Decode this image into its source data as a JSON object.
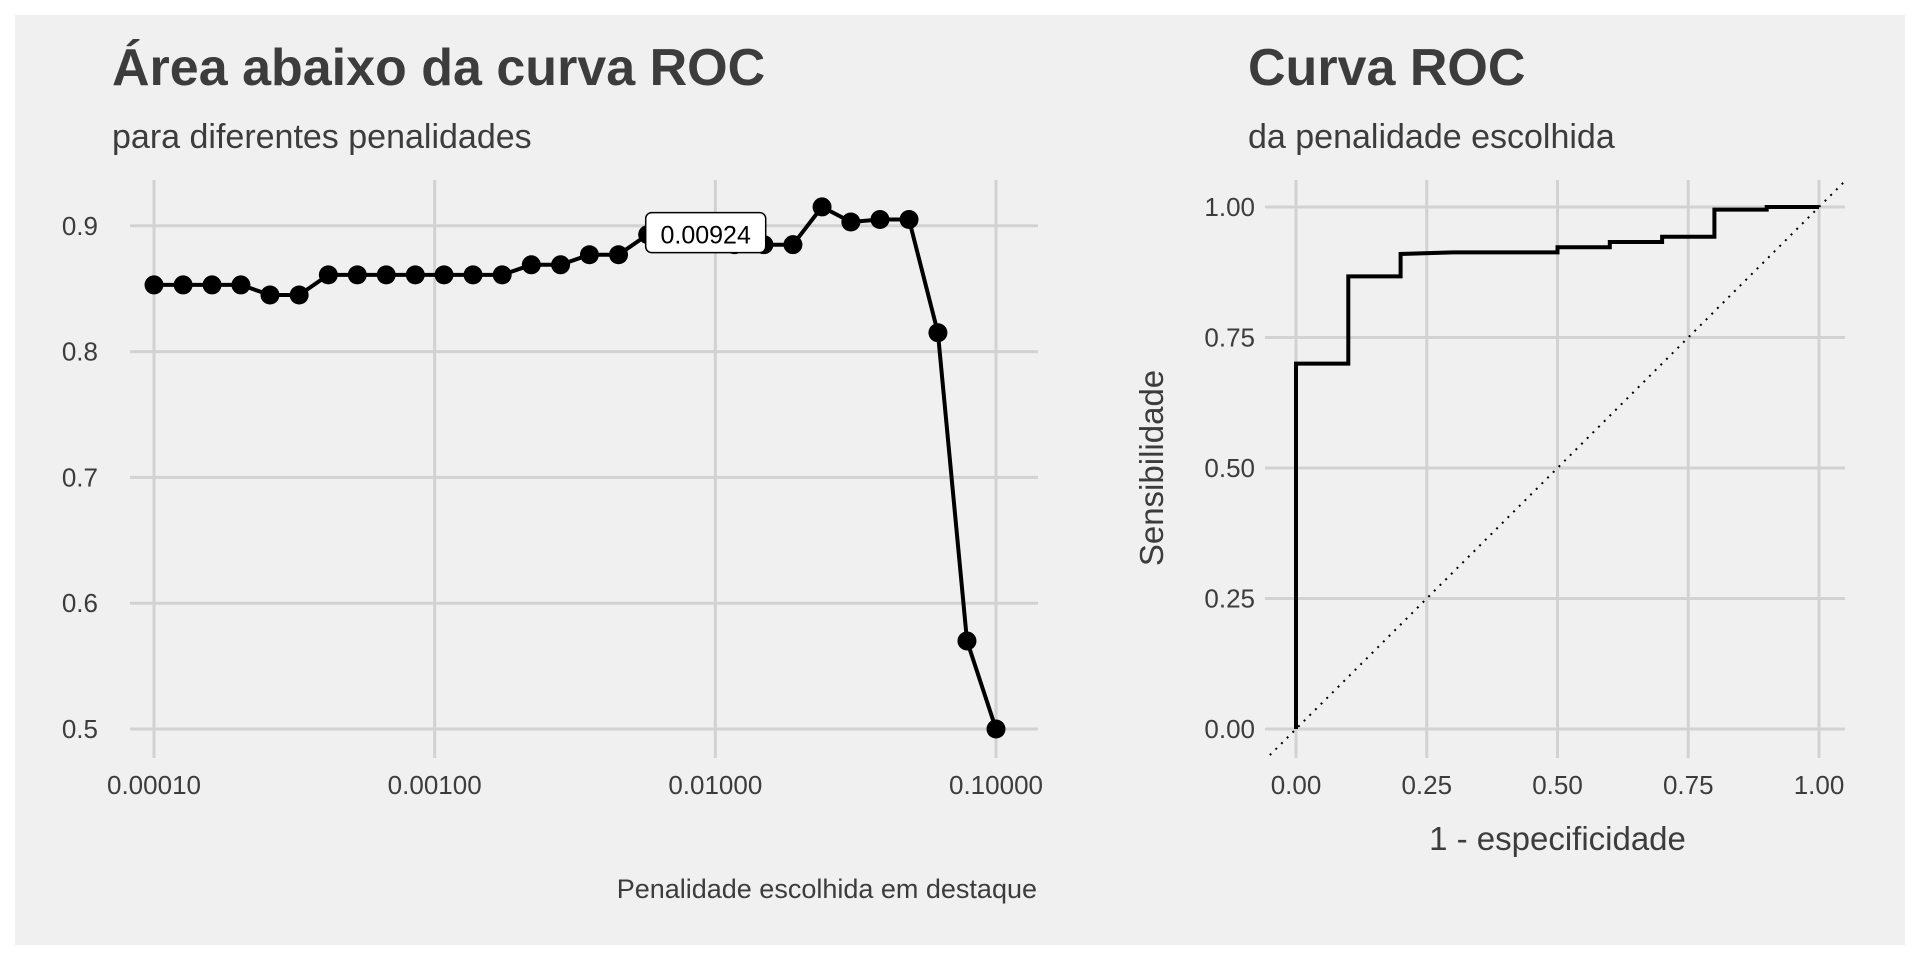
{
  "chart_data": [
    {
      "type": "line",
      "title": "Área abaixo da curva ROC",
      "subtitle": "para diferentes penalidades",
      "caption": "Penalidade escolhida em destaque",
      "xlabel": "",
      "ylabel": "",
      "x_scale": "log10",
      "xlim": [
        0.0001,
        0.1
      ],
      "ylim": [
        0.5,
        0.93
      ],
      "x_ticks": [
        0.0001,
        0.001,
        0.01,
        0.1
      ],
      "x_tick_labels": [
        "0.00010",
        "0.00100",
        "0.01000",
        "0.10000"
      ],
      "y_ticks": [
        0.5,
        0.6,
        0.7,
        0.8,
        0.9
      ],
      "y_tick_labels": [
        "0.5",
        "0.6",
        "0.7",
        "0.8",
        "0.9"
      ],
      "grid": true,
      "highlight": {
        "x": 0.00924,
        "label": "0.00924"
      },
      "series": [
        {
          "x": [
            0.0001,
            0.000127,
            0.000161,
            0.000204,
            0.000259,
            0.000329,
            0.000418,
            0.00053,
            0.000672,
            0.000853,
            0.00108,
            0.00137,
            0.00174,
            0.00221,
            0.00281,
            0.00356,
            0.00452,
            0.00574,
            0.00728,
            0.00924,
            0.0117,
            0.0149,
            0.0189,
            0.024,
            0.0304,
            0.0386,
            0.049,
            0.0621,
            0.0788,
            0.1
          ],
          "y": [
            0.853,
            0.853,
            0.853,
            0.853,
            0.845,
            0.845,
            0.861,
            0.861,
            0.861,
            0.861,
            0.861,
            0.861,
            0.861,
            0.869,
            0.869,
            0.877,
            0.877,
            0.893,
            0.893,
            0.893,
            0.885,
            0.885,
            0.885,
            0.915,
            0.903,
            0.905,
            0.905,
            0.815,
            0.57,
            0.5
          ]
        }
      ]
    },
    {
      "type": "line",
      "title": "Curva ROC",
      "subtitle": "da penalidade escolhida",
      "xlabel": "1 - especificidade",
      "ylabel": "Sensibilidade",
      "xlim": [
        0,
        1
      ],
      "ylim": [
        0,
        1
      ],
      "x_ticks": [
        0,
        0.25,
        0.5,
        0.75,
        1
      ],
      "x_tick_labels": [
        "0.00",
        "0.25",
        "0.50",
        "0.75",
        "1.00"
      ],
      "y_ticks": [
        0,
        0.25,
        0.5,
        0.75,
        1
      ],
      "y_tick_labels": [
        "0.00",
        "0.25",
        "0.50",
        "0.75",
        "1.00"
      ],
      "grid": true,
      "reference_line": "diagonal-dotted",
      "series": [
        {
          "x": [
            0.0,
            0.0,
            0.1,
            0.1,
            0.2,
            0.2,
            0.3,
            0.5,
            0.5,
            0.6,
            0.6,
            0.7,
            0.7,
            0.8,
            0.8,
            0.9,
            0.9,
            1.0
          ],
          "y": [
            0.0,
            0.7,
            0.7,
            0.867,
            0.867,
            0.91,
            0.913,
            0.913,
            0.923,
            0.923,
            0.933,
            0.933,
            0.943,
            0.943,
            0.995,
            0.995,
            1.0,
            1.0
          ]
        }
      ]
    }
  ],
  "colors": {
    "panel_bg": "#f0f0f0",
    "grid": "#d2d2d2",
    "line": "#000000",
    "text": "#3c3c3c"
  }
}
